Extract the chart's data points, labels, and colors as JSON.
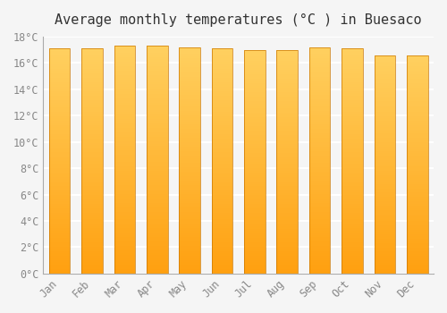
{
  "title": "Average monthly temperatures (°C ) in Buesaco",
  "months": [
    "Jan",
    "Feb",
    "Mar",
    "Apr",
    "May",
    "Jun",
    "Jul",
    "Aug",
    "Sep",
    "Oct",
    "Nov",
    "Dec"
  ],
  "values": [
    17.1,
    17.1,
    17.3,
    17.3,
    17.2,
    17.1,
    17.0,
    17.0,
    17.2,
    17.1,
    16.6,
    16.6
  ],
  "bar_color_top": "#FFD060",
  "bar_color_bottom": "#FFA010",
  "bar_edge_color": "#CC7700",
  "ylim": [
    0,
    18
  ],
  "yticks": [
    0,
    2,
    4,
    6,
    8,
    10,
    12,
    14,
    16,
    18
  ],
  "ytick_labels": [
    "0°C",
    "2°C",
    "4°C",
    "6°C",
    "8°C",
    "10°C",
    "12°C",
    "14°C",
    "16°C",
    "18°C"
  ],
  "background_color": "#f5f5f5",
  "grid_color": "#ffffff",
  "title_fontsize": 11,
  "tick_fontsize": 8.5,
  "bar_width": 0.65,
  "num_slices": 100
}
